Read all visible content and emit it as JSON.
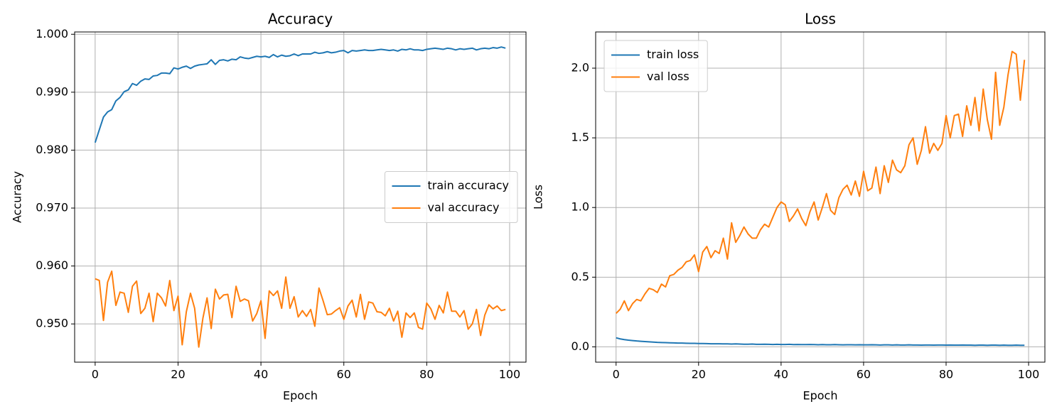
{
  "chart_data": [
    {
      "type": "line",
      "title": "Accuracy",
      "xlabel": "Epoch",
      "ylabel": "Accuracy",
      "x": [
        0,
        1,
        2,
        3,
        4,
        5,
        6,
        7,
        8,
        9,
        10,
        11,
        12,
        13,
        14,
        15,
        16,
        17,
        18,
        19,
        20,
        21,
        22,
        23,
        24,
        25,
        26,
        27,
        28,
        29,
        30,
        31,
        32,
        33,
        34,
        35,
        36,
        37,
        38,
        39,
        40,
        41,
        42,
        43,
        44,
        45,
        46,
        47,
        48,
        49,
        50,
        51,
        52,
        53,
        54,
        55,
        56,
        57,
        58,
        59,
        60,
        61,
        62,
        63,
        64,
        65,
        66,
        67,
        68,
        69,
        70,
        71,
        72,
        73,
        74,
        75,
        76,
        77,
        78,
        79,
        80,
        81,
        82,
        83,
        84,
        85,
        86,
        87,
        88,
        89,
        90,
        91,
        92,
        93,
        94,
        95,
        96,
        97,
        98,
        99
      ],
      "xlim": [
        -4.95,
        103.95
      ],
      "xticks": [
        0,
        20,
        40,
        60,
        80,
        100
      ],
      "ylim": [
        0.9434,
        1.0004
      ],
      "yticks": [
        {
          "value": 0.95,
          "label": "0.950"
        },
        {
          "value": 0.96,
          "label": "0.960"
        },
        {
          "value": 0.97,
          "label": "0.970"
        },
        {
          "value": 0.98,
          "label": "0.980"
        },
        {
          "value": 0.99,
          "label": "0.990"
        },
        {
          "value": 1.0,
          "label": "1.000"
        }
      ],
      "grid": true,
      "legend": "center right",
      "series": [
        {
          "name": "train accuracy",
          "color": "#1f77b4",
          "values": [
            0.9813,
            0.9835,
            0.9857,
            0.9866,
            0.987,
            0.9885,
            0.9891,
            0.9901,
            0.9904,
            0.9915,
            0.9912,
            0.9919,
            0.9923,
            0.9922,
            0.9928,
            0.9929,
            0.9933,
            0.9933,
            0.9932,
            0.9942,
            0.994,
            0.9943,
            0.9945,
            0.9941,
            0.9945,
            0.9947,
            0.9948,
            0.9949,
            0.9956,
            0.9948,
            0.9955,
            0.9956,
            0.9954,
            0.9957,
            0.9956,
            0.9961,
            0.9959,
            0.9958,
            0.996,
            0.9962,
            0.9961,
            0.9962,
            0.996,
            0.9965,
            0.9961,
            0.9964,
            0.9962,
            0.9963,
            0.9966,
            0.9963,
            0.9966,
            0.9966,
            0.9966,
            0.9969,
            0.9967,
            0.9968,
            0.997,
            0.9968,
            0.9969,
            0.9971,
            0.9972,
            0.9968,
            0.9972,
            0.9971,
            0.9972,
            0.9973,
            0.9972,
            0.9972,
            0.9973,
            0.9974,
            0.9973,
            0.9972,
            0.9973,
            0.9971,
            0.9974,
            0.9973,
            0.9975,
            0.9973,
            0.9973,
            0.9972,
            0.9974,
            0.9975,
            0.9976,
            0.9975,
            0.9974,
            0.9976,
            0.9975,
            0.9973,
            0.9975,
            0.9974,
            0.9975,
            0.9976,
            0.9973,
            0.9975,
            0.9976,
            0.9975,
            0.9977,
            0.9976,
            0.9978,
            0.9976
          ]
        },
        {
          "name": "val accuracy",
          "color": "#ff7f0e",
          "values": [
            0.9578,
            0.9575,
            0.9506,
            0.9572,
            0.9591,
            0.9532,
            0.9555,
            0.9553,
            0.952,
            0.9565,
            0.9574,
            0.9518,
            0.9527,
            0.9553,
            0.9504,
            0.9553,
            0.9545,
            0.9531,
            0.9575,
            0.9523,
            0.9548,
            0.9464,
            0.9521,
            0.9553,
            0.9527,
            0.946,
            0.951,
            0.9545,
            0.9492,
            0.956,
            0.9543,
            0.955,
            0.9551,
            0.9511,
            0.9565,
            0.9539,
            0.9543,
            0.954,
            0.9505,
            0.9518,
            0.954,
            0.9475,
            0.9557,
            0.9549,
            0.9557,
            0.9527,
            0.9581,
            0.9527,
            0.9547,
            0.9512,
            0.9523,
            0.9513,
            0.9525,
            0.9496,
            0.9562,
            0.954,
            0.9516,
            0.9517,
            0.9523,
            0.9528,
            0.9508,
            0.9531,
            0.9541,
            0.9512,
            0.9551,
            0.9508,
            0.9538,
            0.9536,
            0.9521,
            0.952,
            0.9514,
            0.9527,
            0.9505,
            0.9522,
            0.9477,
            0.9519,
            0.9511,
            0.9519,
            0.9494,
            0.9491,
            0.9536,
            0.9526,
            0.9508,
            0.9532,
            0.9519,
            0.9555,
            0.9522,
            0.9522,
            0.9512,
            0.9523,
            0.9491,
            0.95,
            0.9525,
            0.948,
            0.9515,
            0.9533,
            0.9526,
            0.9531,
            0.9523,
            0.9525
          ]
        }
      ]
    },
    {
      "type": "line",
      "title": "Loss",
      "xlabel": "Epoch",
      "ylabel": "Loss",
      "x": [
        0,
        1,
        2,
        3,
        4,
        5,
        6,
        7,
        8,
        9,
        10,
        11,
        12,
        13,
        14,
        15,
        16,
        17,
        18,
        19,
        20,
        21,
        22,
        23,
        24,
        25,
        26,
        27,
        28,
        29,
        30,
        31,
        32,
        33,
        34,
        35,
        36,
        37,
        38,
        39,
        40,
        41,
        42,
        43,
        44,
        45,
        46,
        47,
        48,
        49,
        50,
        51,
        52,
        53,
        54,
        55,
        56,
        57,
        58,
        59,
        60,
        61,
        62,
        63,
        64,
        65,
        66,
        67,
        68,
        69,
        70,
        71,
        72,
        73,
        74,
        75,
        76,
        77,
        78,
        79,
        80,
        81,
        82,
        83,
        84,
        85,
        86,
        87,
        88,
        89,
        90,
        91,
        92,
        93,
        94,
        95,
        96,
        97,
        98,
        99
      ],
      "xlim": [
        -4.95,
        103.95
      ],
      "xticks": [
        0,
        20,
        40,
        60,
        80,
        100
      ],
      "ylim": [
        -0.11,
        2.26
      ],
      "yticks": [
        {
          "value": 0,
          "label": "0.0"
        },
        0.5,
        {
          "value": 1,
          "label": "1.0"
        },
        1.5,
        {
          "value": 2,
          "label": "2.0"
        }
      ],
      "grid": true,
      "legend": "upper left",
      "series": [
        {
          "name": "train loss",
          "color": "#1f77b4",
          "values": [
            0.065,
            0.057,
            0.052,
            0.048,
            0.045,
            0.042,
            0.04,
            0.038,
            0.036,
            0.034,
            0.032,
            0.031,
            0.03,
            0.029,
            0.028,
            0.027,
            0.027,
            0.026,
            0.025,
            0.025,
            0.024,
            0.024,
            0.023,
            0.022,
            0.022,
            0.022,
            0.021,
            0.021,
            0.02,
            0.021,
            0.02,
            0.019,
            0.019,
            0.02,
            0.018,
            0.018,
            0.019,
            0.018,
            0.017,
            0.018,
            0.017,
            0.017,
            0.018,
            0.016,
            0.017,
            0.016,
            0.016,
            0.017,
            0.016,
            0.015,
            0.016,
            0.015,
            0.015,
            0.016,
            0.015,
            0.014,
            0.015,
            0.015,
            0.014,
            0.015,
            0.014,
            0.014,
            0.015,
            0.014,
            0.013,
            0.014,
            0.014,
            0.013,
            0.014,
            0.013,
            0.013,
            0.014,
            0.013,
            0.013,
            0.012,
            0.013,
            0.013,
            0.012,
            0.013,
            0.013,
            0.012,
            0.013,
            0.012,
            0.012,
            0.013,
            0.012,
            0.012,
            0.011,
            0.012,
            0.012,
            0.011,
            0.012,
            0.012,
            0.011,
            0.012,
            0.011,
            0.011,
            0.012,
            0.011,
            0.011
          ]
        },
        {
          "name": "val loss",
          "color": "#ff7f0e",
          "values": [
            0.24,
            0.27,
            0.33,
            0.26,
            0.31,
            0.34,
            0.33,
            0.38,
            0.42,
            0.41,
            0.39,
            0.45,
            0.43,
            0.51,
            0.52,
            0.55,
            0.57,
            0.61,
            0.62,
            0.66,
            0.54,
            0.68,
            0.72,
            0.64,
            0.69,
            0.67,
            0.78,
            0.63,
            0.89,
            0.75,
            0.8,
            0.86,
            0.81,
            0.78,
            0.78,
            0.84,
            0.88,
            0.86,
            0.93,
            1.0,
            1.04,
            1.02,
            0.9,
            0.94,
            0.99,
            0.92,
            0.87,
            0.97,
            1.04,
            0.91,
            1.0,
            1.1,
            0.98,
            0.95,
            1.07,
            1.13,
            1.16,
            1.09,
            1.19,
            1.08,
            1.26,
            1.12,
            1.14,
            1.29,
            1.1,
            1.3,
            1.18,
            1.34,
            1.27,
            1.25,
            1.3,
            1.45,
            1.5,
            1.31,
            1.41,
            1.58,
            1.39,
            1.46,
            1.41,
            1.46,
            1.66,
            1.5,
            1.66,
            1.67,
            1.51,
            1.73,
            1.59,
            1.79,
            1.55,
            1.85,
            1.63,
            1.49,
            1.97,
            1.59,
            1.72,
            1.95,
            2.12,
            2.1,
            1.77,
            2.06
          ]
        }
      ]
    }
  ]
}
